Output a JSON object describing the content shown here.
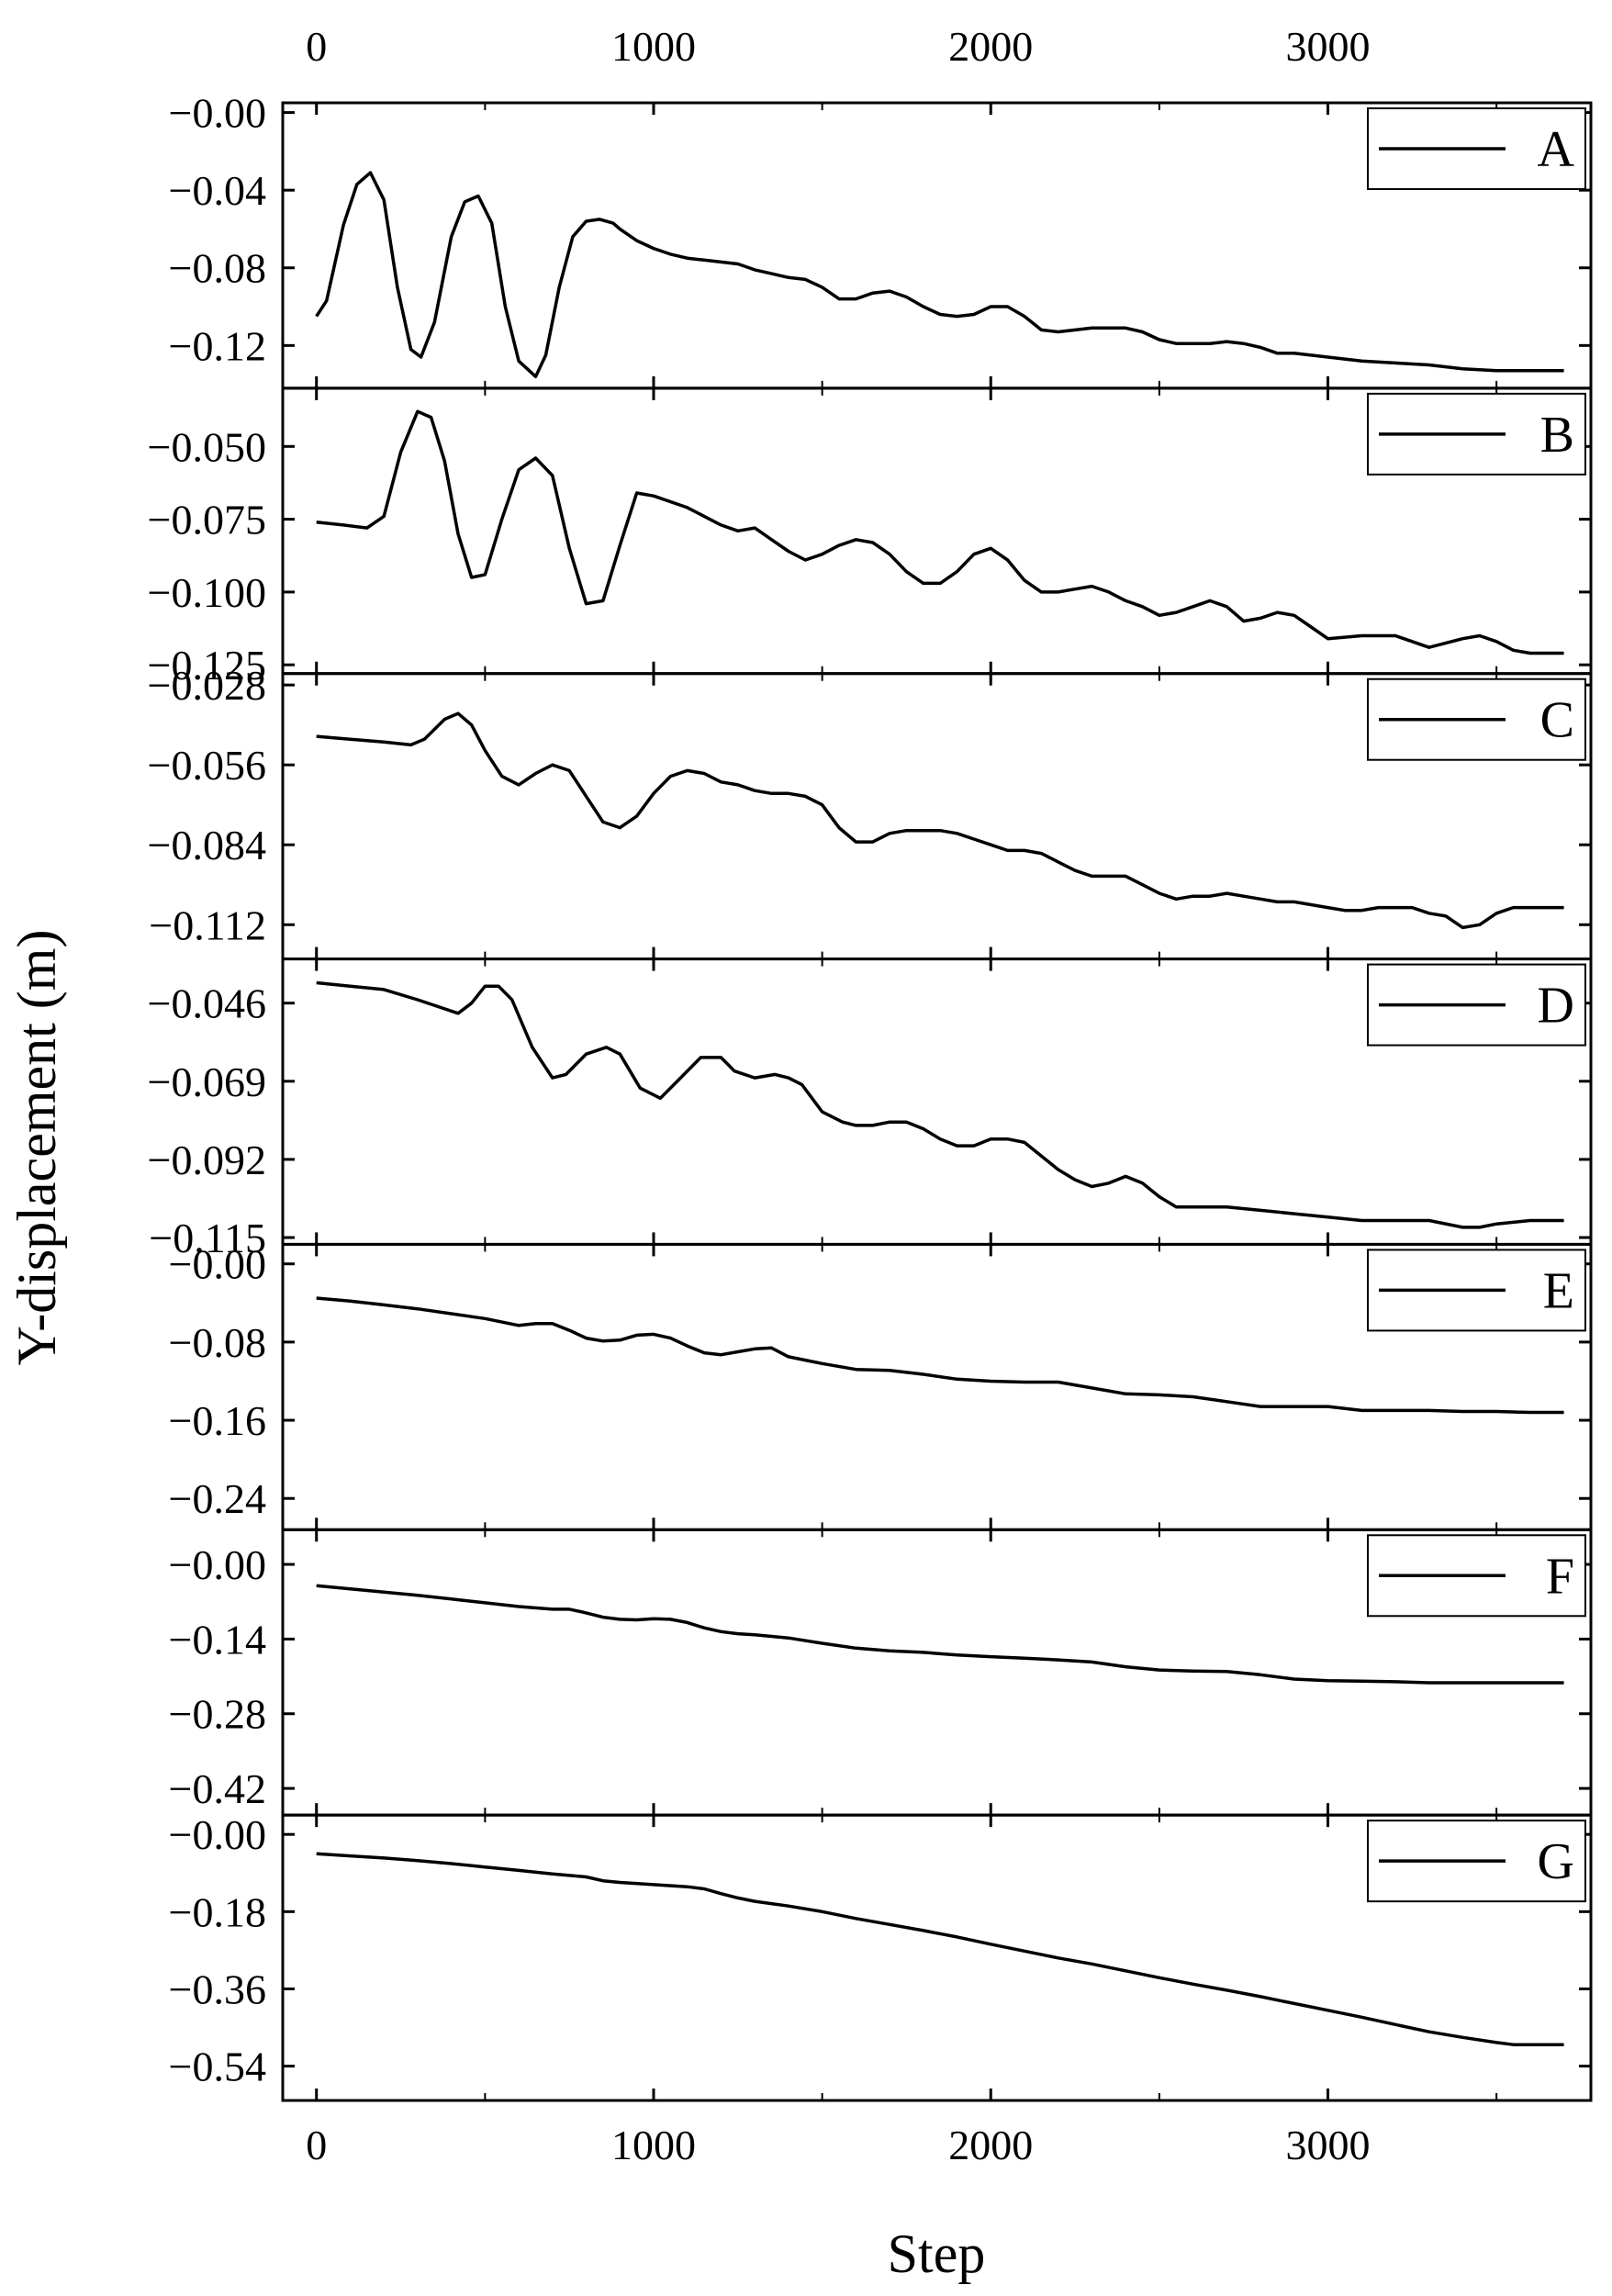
{
  "chart_data": {
    "type": "line",
    "xlabel": "Step",
    "ylabel": "Y-displacement (m)",
    "x_ticks": [
      "0",
      "1000",
      "2000",
      "3000"
    ],
    "x_tick_values": [
      0,
      1000,
      2000,
      3000
    ],
    "xlim": [
      -100,
      3780
    ],
    "top_axis_labels": true,
    "grid": false,
    "legend_placement": "top-right",
    "panels": [
      {
        "name": "A",
        "ylim": [
          -0.142,
          0.005
        ],
        "y_ticks": [
          "−0.00",
          "−0.04",
          "−0.08",
          "−0.12"
        ],
        "y_tick_values": [
          0.0,
          -0.04,
          -0.08,
          -0.12
        ],
        "x": [
          0,
          30,
          80,
          120,
          160,
          200,
          240,
          280,
          310,
          350,
          400,
          440,
          480,
          520,
          560,
          600,
          650,
          680,
          720,
          760,
          800,
          840,
          880,
          900,
          950,
          1000,
          1050,
          1100,
          1150,
          1200,
          1250,
          1300,
          1350,
          1400,
          1450,
          1500,
          1550,
          1600,
          1650,
          1700,
          1750,
          1800,
          1850,
          1900,
          1950,
          2000,
          2050,
          2100,
          2150,
          2200,
          2250,
          2300,
          2350,
          2400,
          2450,
          2500,
          2550,
          2600,
          2650,
          2700,
          2750,
          2800,
          2850,
          2900,
          3000,
          3100,
          3200,
          3300,
          3400,
          3500,
          3600,
          3700
        ],
        "y": [
          -0.105,
          -0.097,
          -0.058,
          -0.037,
          -0.031,
          -0.045,
          -0.09,
          -0.122,
          -0.126,
          -0.108,
          -0.064,
          -0.046,
          -0.043,
          -0.057,
          -0.1,
          -0.128,
          -0.136,
          -0.125,
          -0.09,
          -0.064,
          -0.056,
          -0.055,
          -0.057,
          -0.06,
          -0.066,
          -0.07,
          -0.073,
          -0.075,
          -0.076,
          -0.077,
          -0.078,
          -0.081,
          -0.083,
          -0.085,
          -0.086,
          -0.09,
          -0.096,
          -0.096,
          -0.093,
          -0.092,
          -0.095,
          -0.1,
          -0.104,
          -0.105,
          -0.104,
          -0.1,
          -0.1,
          -0.105,
          -0.112,
          -0.113,
          -0.112,
          -0.111,
          -0.111,
          -0.111,
          -0.113,
          -0.117,
          -0.119,
          -0.119,
          -0.119,
          -0.118,
          -0.119,
          -0.121,
          -0.124,
          -0.124,
          -0.126,
          -0.128,
          -0.129,
          -0.13,
          -0.132,
          -0.133,
          -0.133,
          -0.133
        ]
      },
      {
        "name": "B",
        "ylim": [
          -0.128,
          -0.03
        ],
        "y_ticks": [
          "−0.050",
          "−0.075",
          "−0.100",
          "−0.125"
        ],
        "y_tick_values": [
          -0.05,
          -0.075,
          -0.1,
          -0.125
        ],
        "x": [
          0,
          80,
          150,
          200,
          250,
          300,
          340,
          380,
          420,
          460,
          500,
          550,
          600,
          650,
          700,
          750,
          800,
          850,
          900,
          950,
          1000,
          1100,
          1150,
          1200,
          1250,
          1300,
          1350,
          1400,
          1450,
          1500,
          1550,
          1600,
          1650,
          1700,
          1750,
          1800,
          1850,
          1900,
          1950,
          2000,
          2050,
          2100,
          2150,
          2200,
          2250,
          2300,
          2350,
          2400,
          2450,
          2500,
          2550,
          2600,
          2650,
          2700,
          2750,
          2800,
          2850,
          2900,
          2950,
          3000,
          3100,
          3200,
          3300,
          3400,
          3450,
          3500,
          3550,
          3600,
          3700
        ],
        "y": [
          -0.076,
          -0.077,
          -0.078,
          -0.074,
          -0.052,
          -0.038,
          -0.04,
          -0.055,
          -0.08,
          -0.095,
          -0.094,
          -0.075,
          -0.058,
          -0.054,
          -0.06,
          -0.085,
          -0.104,
          -0.103,
          -0.084,
          -0.066,
          -0.067,
          -0.071,
          -0.074,
          -0.077,
          -0.079,
          -0.078,
          -0.082,
          -0.086,
          -0.089,
          -0.087,
          -0.084,
          -0.082,
          -0.083,
          -0.087,
          -0.093,
          -0.097,
          -0.097,
          -0.093,
          -0.087,
          -0.085,
          -0.089,
          -0.096,
          -0.1,
          -0.1,
          -0.099,
          -0.098,
          -0.1,
          -0.103,
          -0.105,
          -0.108,
          -0.107,
          -0.105,
          -0.103,
          -0.105,
          -0.11,
          -0.109,
          -0.107,
          -0.108,
          -0.112,
          -0.116,
          -0.115,
          -0.115,
          -0.119,
          -0.116,
          -0.115,
          -0.117,
          -0.12,
          -0.121,
          -0.121
        ]
      },
      {
        "name": "C",
        "ylim": [
          -0.124,
          -0.024
        ],
        "y_ticks": [
          "−0.028",
          "−0.056",
          "−0.084",
          "−0.112"
        ],
        "y_tick_values": [
          -0.028,
          -0.056,
          -0.084,
          -0.112
        ],
        "x": [
          0,
          100,
          200,
          280,
          320,
          380,
          420,
          460,
          500,
          550,
          600,
          650,
          700,
          750,
          800,
          850,
          900,
          950,
          1000,
          1050,
          1100,
          1150,
          1200,
          1250,
          1300,
          1350,
          1400,
          1450,
          1500,
          1550,
          1600,
          1650,
          1700,
          1750,
          1800,
          1850,
          1900,
          1950,
          2000,
          2050,
          2100,
          2150,
          2200,
          2250,
          2300,
          2350,
          2400,
          2450,
          2500,
          2550,
          2600,
          2650,
          2700,
          2750,
          2800,
          2850,
          2900,
          2950,
          3000,
          3050,
          3100,
          3150,
          3200,
          3250,
          3300,
          3350,
          3400,
          3450,
          3500,
          3550,
          3600,
          3700
        ],
        "y": [
          -0.046,
          -0.047,
          -0.048,
          -0.049,
          -0.047,
          -0.04,
          -0.038,
          -0.042,
          -0.051,
          -0.06,
          -0.063,
          -0.059,
          -0.056,
          -0.058,
          -0.067,
          -0.076,
          -0.078,
          -0.074,
          -0.066,
          -0.06,
          -0.058,
          -0.059,
          -0.062,
          -0.063,
          -0.065,
          -0.066,
          -0.066,
          -0.067,
          -0.07,
          -0.078,
          -0.083,
          -0.083,
          -0.08,
          -0.079,
          -0.079,
          -0.079,
          -0.08,
          -0.082,
          -0.084,
          -0.086,
          -0.086,
          -0.087,
          -0.09,
          -0.093,
          -0.095,
          -0.095,
          -0.095,
          -0.098,
          -0.101,
          -0.103,
          -0.102,
          -0.102,
          -0.101,
          -0.102,
          -0.103,
          -0.104,
          -0.104,
          -0.105,
          -0.106,
          -0.107,
          -0.107,
          -0.106,
          -0.106,
          -0.106,
          -0.108,
          -0.109,
          -0.113,
          -0.112,
          -0.108,
          -0.106,
          -0.106,
          -0.106
        ]
      },
      {
        "name": "D",
        "ylim": [
          -0.117,
          -0.033
        ],
        "y_ticks": [
          "−0.046",
          "−0.069",
          "−0.092",
          "−0.115"
        ],
        "y_tick_values": [
          -0.046,
          -0.069,
          -0.092,
          -0.115
        ],
        "x": [
          0,
          100,
          200,
          300,
          360,
          420,
          460,
          500,
          540,
          580,
          640,
          700,
          740,
          800,
          860,
          900,
          960,
          1020,
          1080,
          1140,
          1200,
          1240,
          1300,
          1360,
          1400,
          1440,
          1500,
          1560,
          1600,
          1650,
          1700,
          1750,
          1800,
          1850,
          1900,
          1950,
          2000,
          2050,
          2100,
          2150,
          2200,
          2250,
          2300,
          2350,
          2400,
          2450,
          2500,
          2550,
          2600,
          2700,
          2800,
          2900,
          3000,
          3100,
          3200,
          3300,
          3400,
          3450,
          3500,
          3600,
          3700
        ],
        "y": [
          -0.04,
          -0.041,
          -0.042,
          -0.045,
          -0.047,
          -0.049,
          -0.046,
          -0.041,
          -0.041,
          -0.045,
          -0.059,
          -0.068,
          -0.067,
          -0.061,
          -0.059,
          -0.061,
          -0.071,
          -0.074,
          -0.068,
          -0.062,
          -0.062,
          -0.066,
          -0.068,
          -0.067,
          -0.068,
          -0.07,
          -0.078,
          -0.081,
          -0.082,
          -0.082,
          -0.081,
          -0.081,
          -0.083,
          -0.086,
          -0.088,
          -0.088,
          -0.086,
          -0.086,
          -0.087,
          -0.091,
          -0.095,
          -0.098,
          -0.1,
          -0.099,
          -0.097,
          -0.099,
          -0.103,
          -0.106,
          -0.106,
          -0.106,
          -0.107,
          -0.108,
          -0.109,
          -0.11,
          -0.11,
          -0.11,
          -0.112,
          -0.112,
          -0.111,
          -0.11,
          -0.11
        ]
      },
      {
        "name": "E",
        "ylim": [
          -0.272,
          0.02
        ],
        "y_ticks": [
          "−0.00",
          "−0.08",
          "−0.16",
          "−0.24"
        ],
        "y_tick_values": [
          0.0,
          -0.08,
          -0.16,
          -0.24
        ],
        "x": [
          0,
          100,
          200,
          300,
          400,
          500,
          600,
          650,
          700,
          750,
          800,
          850,
          900,
          950,
          1000,
          1050,
          1100,
          1150,
          1200,
          1250,
          1300,
          1350,
          1400,
          1500,
          1600,
          1700,
          1800,
          1900,
          2000,
          2100,
          2200,
          2300,
          2400,
          2500,
          2600,
          2700,
          2800,
          2900,
          3000,
          3100,
          3200,
          3300,
          3400,
          3500,
          3600,
          3700
        ],
        "y": [
          -0.035,
          -0.038,
          -0.042,
          -0.046,
          -0.051,
          -0.056,
          -0.063,
          -0.061,
          -0.061,
          -0.068,
          -0.076,
          -0.079,
          -0.078,
          -0.073,
          -0.072,
          -0.076,
          -0.084,
          -0.091,
          -0.093,
          -0.09,
          -0.087,
          -0.086,
          -0.095,
          -0.102,
          -0.108,
          -0.109,
          -0.113,
          -0.118,
          -0.12,
          -0.121,
          -0.121,
          -0.127,
          -0.133,
          -0.134,
          -0.136,
          -0.141,
          -0.146,
          -0.146,
          -0.146,
          -0.15,
          -0.15,
          -0.15,
          -0.151,
          -0.151,
          -0.152,
          -0.152
        ]
      },
      {
        "name": "F",
        "ylim": [
          -0.47,
          0.065
        ],
        "y_ticks": [
          "−0.00",
          "−0.14",
          "−0.28",
          "−0.42"
        ],
        "y_tick_values": [
          0.0,
          -0.14,
          -0.28,
          -0.42
        ],
        "x": [
          0,
          100,
          200,
          300,
          400,
          500,
          600,
          700,
          750,
          800,
          850,
          900,
          950,
          1000,
          1050,
          1100,
          1150,
          1200,
          1250,
          1300,
          1400,
          1500,
          1600,
          1700,
          1800,
          1900,
          2000,
          2100,
          2200,
          2300,
          2400,
          2500,
          2600,
          2700,
          2800,
          2900,
          3000,
          3100,
          3200,
          3300,
          3400,
          3500,
          3600,
          3700
        ],
        "y": [
          -0.04,
          -0.046,
          -0.052,
          -0.058,
          -0.065,
          -0.072,
          -0.079,
          -0.084,
          -0.084,
          -0.091,
          -0.099,
          -0.103,
          -0.104,
          -0.102,
          -0.103,
          -0.109,
          -0.119,
          -0.126,
          -0.13,
          -0.132,
          -0.138,
          -0.148,
          -0.157,
          -0.162,
          -0.165,
          -0.17,
          -0.173,
          -0.176,
          -0.179,
          -0.183,
          -0.192,
          -0.198,
          -0.2,
          -0.201,
          -0.207,
          -0.215,
          -0.218,
          -0.219,
          -0.22,
          -0.222,
          -0.222,
          -0.222,
          -0.222,
          -0.222
        ]
      },
      {
        "name": "G",
        "ylim": [
          -0.62,
          0.045
        ],
        "y_ticks": [
          "−0.00",
          "−0.18",
          "−0.36",
          "−0.54"
        ],
        "y_tick_values": [
          0.0,
          -0.18,
          -0.36,
          -0.54
        ],
        "x": [
          0,
          100,
          200,
          300,
          400,
          500,
          600,
          700,
          800,
          850,
          900,
          1000,
          1100,
          1150,
          1200,
          1250,
          1300,
          1400,
          1500,
          1600,
          1700,
          1800,
          1900,
          2000,
          2100,
          2200,
          2300,
          2400,
          2500,
          2600,
          2700,
          2800,
          2900,
          3000,
          3100,
          3200,
          3300,
          3400,
          3500,
          3550,
          3600,
          3700
        ],
        "y": [
          -0.045,
          -0.05,
          -0.055,
          -0.061,
          -0.068,
          -0.076,
          -0.084,
          -0.092,
          -0.099,
          -0.108,
          -0.112,
          -0.117,
          -0.122,
          -0.127,
          -0.138,
          -0.148,
          -0.156,
          -0.167,
          -0.18,
          -0.196,
          -0.21,
          -0.224,
          -0.239,
          -0.256,
          -0.272,
          -0.288,
          -0.302,
          -0.318,
          -0.334,
          -0.349,
          -0.363,
          -0.378,
          -0.394,
          -0.41,
          -0.426,
          -0.443,
          -0.46,
          -0.473,
          -0.485,
          -0.49,
          -0.49,
          -0.49
        ]
      }
    ]
  }
}
